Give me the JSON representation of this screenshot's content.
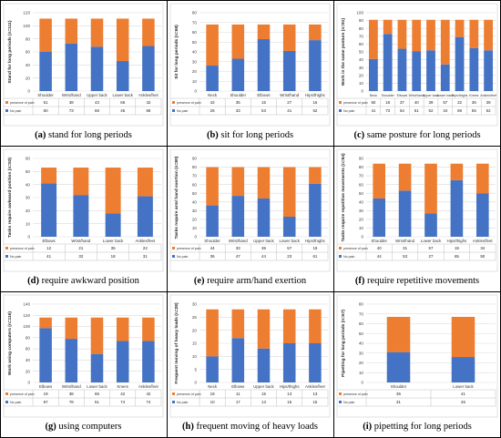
{
  "legend": {
    "presence_label": "presence of pain",
    "nopain_label": "No pain",
    "presence_color": "#ED7D31",
    "nopain_color": "#4472C4"
  },
  "chart_data": [
    {
      "type": "bar",
      "stacked": true,
      "caption_letter": "(a)",
      "caption_text": " stand for long periods",
      "ylabel": "Stand for long periods (n=111)",
      "categories": [
        "Shoulder",
        "Wrist/hand",
        "Upper back",
        "Lower back",
        "Ankles/feet"
      ],
      "series": [
        {
          "name": "presence of pain",
          "values": [
            51,
            38,
            43,
            65,
            42
          ]
        },
        {
          "name": "No pain",
          "values": [
            60,
            73,
            68,
            46,
            69
          ]
        }
      ],
      "ylim": [
        0,
        120
      ],
      "yticks": [
        0,
        20,
        40,
        60,
        80,
        100,
        120
      ],
      "legend_position": "table-below"
    },
    {
      "type": "bar",
      "stacked": true,
      "caption_letter": "(b)",
      "caption_text": " sit for long periods",
      "ylabel": "Sit for long periods (n=68)",
      "categories": [
        "Neck",
        "Shoulder",
        "Elbows",
        "Wrist/hand",
        "Hips/thighs"
      ],
      "series": [
        {
          "name": "presence of pain",
          "values": [
            42,
            35,
            15,
            27,
            16
          ]
        },
        {
          "name": "No pain",
          "values": [
            26,
            33,
            53,
            41,
            52
          ]
        }
      ],
      "ylim": [
        0,
        80
      ],
      "yticks": [
        0,
        10,
        20,
        30,
        40,
        50,
        60,
        70,
        80
      ],
      "legend_position": "table-below"
    },
    {
      "type": "bar",
      "stacked": true,
      "caption_letter": "(c)",
      "caption_text": " same posture for long periods",
      "ylabel": "Work in the same posture (n=91)",
      "categories": [
        "Neck",
        "Shoulder",
        "Elbows",
        "Wrist/hand",
        "Upper back",
        "Lower back",
        "Hips/thighs",
        "Knees",
        "Ankles/feet"
      ],
      "series": [
        {
          "name": "presence of pain",
          "values": [
            50,
            18,
            37,
            40,
            39,
            57,
            22,
            36,
            39
          ]
        },
        {
          "name": "No pain",
          "values": [
            41,
            73,
            54,
            51,
            52,
            34,
            69,
            55,
            52
          ]
        }
      ],
      "ylim": [
        0,
        100
      ],
      "yticks": [
        0,
        10,
        20,
        30,
        40,
        50,
        60,
        70,
        80,
        90,
        100
      ],
      "legend_position": "table-below"
    },
    {
      "type": "bar",
      "stacked": true,
      "caption_letter": "(d)",
      "caption_text": " require awkward position",
      "ylabel": "Tasks require awkward position (n=53)",
      "categories": [
        "Elbows",
        "Wrist/hand",
        "Lower back",
        "Ankles/feet"
      ],
      "series": [
        {
          "name": "presence of pain",
          "values": [
            12,
            21,
            35,
            22
          ]
        },
        {
          "name": "No pain",
          "values": [
            41,
            32,
            18,
            31
          ]
        }
      ],
      "ylim": [
        0,
        60
      ],
      "yticks": [
        0,
        10,
        20,
        30,
        40,
        50,
        60
      ],
      "legend_position": "table-below"
    },
    {
      "type": "bar",
      "stacked": true,
      "caption_letter": "(e)",
      "caption_text": " require arm/hand exertion",
      "ylabel": "Tasks require arm/ hand exertion (n=80)",
      "categories": [
        "Shoulder",
        "Wrist/hand",
        "Upper back",
        "Lower back",
        "Hips/thighs"
      ],
      "series": [
        {
          "name": "presence of pain",
          "values": [
            44,
            33,
            36,
            57,
            19
          ]
        },
        {
          "name": "No pain",
          "values": [
            36,
            47,
            44,
            23,
            61
          ]
        }
      ],
      "ylim": [
        0,
        90
      ],
      "yticks": [
        0,
        10,
        20,
        30,
        40,
        50,
        60,
        70,
        80,
        90
      ],
      "legend_position": "table-below"
    },
    {
      "type": "bar",
      "stacked": true,
      "caption_letter": "(f)",
      "caption_text": " require repetitive movements",
      "ylabel": "Tasks require repetitive movements (n=84)",
      "categories": [
        "Shoulder",
        "Wrist/hand",
        "Lower back",
        "Hips/thighs",
        "Ankles/feet"
      ],
      "series": [
        {
          "name": "presence of pain",
          "values": [
            40,
            31,
            57,
            19,
            34
          ]
        },
        {
          "name": "No pain",
          "values": [
            44,
            53,
            27,
            65,
            50
          ]
        }
      ],
      "ylim": [
        0,
        90
      ],
      "yticks": [
        0,
        10,
        20,
        30,
        40,
        50,
        60,
        70,
        80,
        90
      ],
      "legend_position": "table-below"
    },
    {
      "type": "bar",
      "stacked": true,
      "caption_letter": "(g)",
      "caption_text": " using computers",
      "ylabel": "Work using computers (n=116)",
      "categories": [
        "Elbows",
        "Wrist/hand",
        "Lower back",
        "Knees",
        "Ankles/feet"
      ],
      "series": [
        {
          "name": "presence of pain",
          "values": [
            19,
            38,
            65,
            42,
            42
          ]
        },
        {
          "name": "No pain",
          "values": [
            97,
            78,
            51,
            74,
            74
          ]
        }
      ],
      "ylim": [
        0,
        140
      ],
      "yticks": [
        0,
        20,
        40,
        60,
        80,
        100,
        120,
        140
      ],
      "legend_position": "table-below"
    },
    {
      "type": "bar",
      "stacked": true,
      "caption_letter": "(h)",
      "caption_text": " frequent moving of heavy loads",
      "ylabel": "Frequent moving of heavy loads (n=28)",
      "categories": [
        "Neck",
        "Elbows",
        "Upper back",
        "Hips/thighs",
        "Ankles/feet"
      ],
      "series": [
        {
          "name": "presence of pain",
          "values": [
            18,
            11,
            15,
            13,
            13
          ]
        },
        {
          "name": "No pain",
          "values": [
            10,
            17,
            13,
            15,
            15
          ]
        }
      ],
      "ylim": [
        0,
        30
      ],
      "yticks": [
        0,
        5,
        10,
        15,
        20,
        25,
        30
      ],
      "legend_position": "table-below"
    },
    {
      "type": "bar",
      "stacked": true,
      "caption_letter": "(i)",
      "caption_text": " pipetting for long periods",
      "ylabel": "Pipetting for long periods (n=67)",
      "categories": [
        "Shoulder",
        "Lower back"
      ],
      "series": [
        {
          "name": "presence of pain",
          "values": [
            36,
            41
          ]
        },
        {
          "name": "No pain",
          "values": [
            31,
            26
          ]
        }
      ],
      "ylim": [
        0,
        80
      ],
      "yticks": [
        0,
        10,
        20,
        30,
        40,
        50,
        60,
        70,
        80
      ],
      "legend_position": "table-below"
    }
  ]
}
